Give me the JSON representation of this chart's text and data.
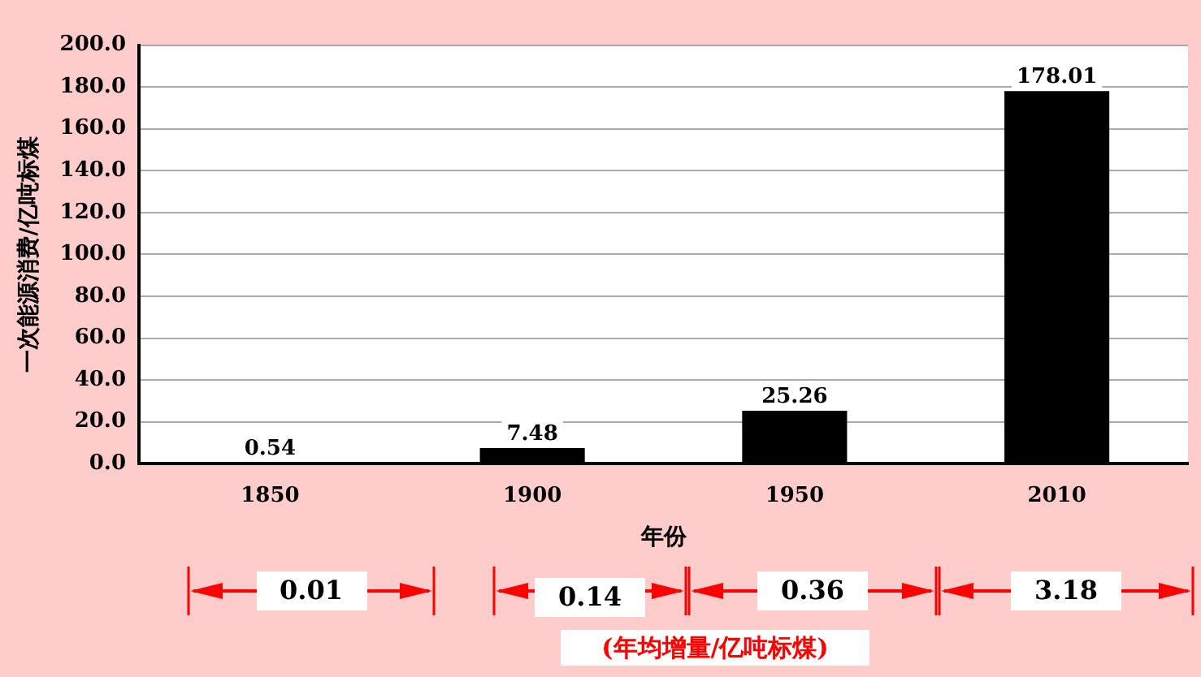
{
  "chart_data": {
    "type": "bar",
    "xlabel": "年份",
    "ylabel": "一次能源消费/亿吨标煤",
    "categories": [
      "1850",
      "1900",
      "1950",
      "2010"
    ],
    "values": [
      0.54,
      7.48,
      25.26,
      178.01
    ],
    "value_labels": [
      "0.54",
      "7.48",
      "25.26",
      "178.01"
    ],
    "color": "#000000",
    "ylim": [
      0,
      200
    ],
    "yticks": [
      {
        "value": 0,
        "label": "0.0"
      },
      {
        "value": 20,
        "label": "20.0"
      },
      {
        "value": 40,
        "label": "40.0"
      },
      {
        "value": 60,
        "label": "60.0"
      },
      {
        "value": 80,
        "label": "80.0"
      },
      {
        "value": 100,
        "label": "100.0"
      },
      {
        "value": 120,
        "label": "120.0"
      },
      {
        "value": 140,
        "label": "140.0"
      },
      {
        "value": 160,
        "label": "160.0"
      },
      {
        "value": 180,
        "label": "180.0"
      },
      {
        "value": 200,
        "label": "200.0"
      }
    ],
    "grid": "y",
    "legend": false,
    "annotations": [
      "0.01",
      "0.14",
      "0.36",
      "3.18",
      "(年均增量/亿吨标煤)"
    ]
  }
}
